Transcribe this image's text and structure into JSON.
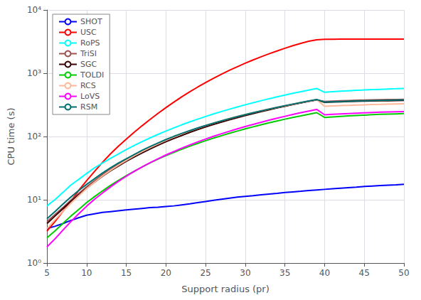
{
  "chart_data": {
    "type": "line",
    "xlabel": "Support radius (pr)",
    "ylabel": "CPU time (s)",
    "log": "y",
    "grid": true,
    "legend": "upper left",
    "xlim": [
      5,
      50
    ],
    "ylim": [
      1,
      10000
    ],
    "xticks": [
      5,
      10,
      15,
      20,
      25,
      30,
      35,
      40,
      45,
      50
    ],
    "yticks": [
      {
        "value": 1,
        "label": "10⁰"
      },
      {
        "value": 10,
        "label": "10¹"
      },
      {
        "value": 100,
        "label": "10²"
      },
      {
        "value": 1000,
        "label": "10³"
      },
      {
        "value": 10000,
        "label": "10⁴"
      }
    ],
    "x": [
      5,
      6,
      7,
      8,
      9,
      10,
      11,
      12,
      13,
      14,
      15,
      16,
      17,
      18,
      19,
      20,
      21,
      22,
      23,
      24,
      25,
      26,
      27,
      28,
      29,
      30,
      31,
      32,
      33,
      34,
      35,
      36,
      37,
      38,
      39,
      40,
      41,
      42,
      43,
      44,
      45,
      46,
      47,
      48,
      49,
      50
    ],
    "series": [
      {
        "name": "SHOT",
        "color": "#0000ff",
        "values": [
          3.5,
          3.8,
          4.2,
          4.7,
          5.2,
          5.7,
          6.0,
          6.3,
          6.5,
          6.7,
          6.9,
          7.1,
          7.3,
          7.5,
          7.6,
          7.8,
          8.0,
          8.3,
          8.6,
          9.0,
          9.4,
          9.8,
          10.2,
          10.6,
          11.0,
          11.3,
          11.6,
          12.0,
          12.3,
          12.6,
          13.0,
          13.3,
          13.6,
          14.0,
          14.3,
          14.6,
          14.9,
          15.2,
          15.5,
          15.8,
          16.2,
          16.5,
          16.8,
          17.0,
          17.2,
          17.5
        ]
      },
      {
        "name": "USC",
        "color": "#ff0000",
        "values": [
          3.2,
          4.5,
          6.5,
          9.5,
          14.0,
          20.0,
          28.0,
          39.0,
          53.0,
          70.0,
          91.0,
          117.0,
          148.0,
          186.0,
          232.0,
          286.0,
          350.0,
          424.0,
          508.0,
          604.0,
          712.0,
          832.0,
          965.0,
          1110.0,
          1268.0,
          1440.0,
          1624.0,
          1820.0,
          2028.0,
          2248.0,
          2480.0,
          2720.0,
          2960.0,
          3200.0,
          3380.0,
          3440.0,
          3450.0,
          3460.0,
          3460.0,
          3460.0,
          3460.0,
          3460.0,
          3460.0,
          3460.0,
          3460.0,
          3460.0
        ]
      },
      {
        "name": "RoPS",
        "color": "#00ffff",
        "values": [
          8.0,
          10.0,
          13.0,
          17.0,
          21.0,
          26.0,
          32.0,
          38.0,
          45.0,
          53.0,
          62.0,
          72.0,
          83.0,
          95.0,
          108.0,
          122.0,
          137.0,
          153.0,
          170.0,
          188.0,
          207.0,
          227.0,
          248.0,
          270.0,
          293.0,
          317.0,
          342.0,
          368.0,
          395.0,
          423.0,
          452.0,
          481.0,
          511.0,
          542.0,
          574.0,
          500.0,
          510.0,
          520.0,
          528.0,
          536.0,
          543.0,
          550.0,
          556.0,
          562.0,
          568.0,
          575.0
        ]
      },
      {
        "name": "TriSI",
        "color": "#a05050",
        "values": [
          4.5,
          5.8,
          7.5,
          9.8,
          12.5,
          16.0,
          20.0,
          25.0,
          30.5,
          36.5,
          43.0,
          50.5,
          58.5,
          67.0,
          76.5,
          86.5,
          97.0,
          108.5,
          120.5,
          133.0,
          146.0,
          159.5,
          173.5,
          188.0,
          203.0,
          218.5,
          234.5,
          251.0,
          268.0,
          285.5,
          303.5,
          322.0,
          341.0,
          360.0,
          379.0,
          358.0,
          362.0,
          366.0,
          370.0,
          373.0,
          376.0,
          379.0,
          381.0,
          383.0,
          385.0,
          387.0
        ]
      },
      {
        "name": "SGC",
        "color": "#3d0000",
        "values": [
          4.2,
          5.5,
          7.2,
          9.4,
          12.0,
          15.2,
          19.0,
          23.5,
          28.5,
          34.0,
          40.5,
          47.5,
          55.0,
          63.5,
          72.5,
          82.5,
          93.0,
          104.0,
          116.0,
          128.5,
          141.5,
          155.0,
          169.0,
          183.5,
          198.5,
          214.0,
          230.0,
          247.0,
          264.5,
          282.5,
          301.0,
          320.0,
          339.5,
          359.5,
          380.0,
          346.0,
          350.0,
          354.0,
          357.0,
          360.0,
          362.0,
          364.0,
          366.0,
          368.0,
          370.0,
          372.0
        ]
      },
      {
        "name": "TOLDI",
        "color": "#00cc00",
        "values": [
          2.5,
          3.2,
          4.2,
          5.5,
          7.0,
          9.0,
          11.2,
          13.8,
          16.8,
          20.2,
          24.0,
          28.2,
          33.0,
          38.2,
          43.8,
          49.8,
          56.2,
          63.0,
          70.2,
          77.8,
          85.8,
          94.2,
          103.0,
          112.2,
          121.8,
          131.8,
          142.2,
          153.0,
          164.2,
          175.8,
          187.8,
          200.0,
          212.0,
          225.0,
          238.0,
          200.0,
          204.0,
          208.0,
          212.0,
          215.0,
          218.0,
          221.0,
          224.0,
          226.0,
          228.0,
          230.0
        ]
      },
      {
        "name": "RCS",
        "color": "#ffb899",
        "values": [
          3.5,
          4.8,
          6.5,
          8.8,
          11.5,
          15.0,
          19.0,
          23.8,
          29.2,
          35.2,
          42.0,
          49.5,
          57.8,
          66.8,
          76.5,
          87.0,
          98.2,
          110.0,
          122.5,
          135.5,
          149.0,
          162.8,
          177.2,
          192.0,
          207.2,
          222.8,
          238.8,
          255.2,
          272.0,
          289.2,
          306.8,
          324.8,
          343.2,
          362.0,
          381.2,
          300.0,
          304.0,
          308.0,
          311.0,
          314.0,
          317.0,
          320.0,
          322.0,
          325.0,
          327.0,
          329.0
        ]
      },
      {
        "name": "LoVS",
        "color": "#ff00ff",
        "values": [
          1.8,
          2.4,
          3.3,
          4.5,
          6.0,
          7.9,
          10.2,
          12.8,
          15.9,
          19.5,
          23.5,
          28.0,
          33.0,
          38.5,
          44.5,
          51.0,
          58.0,
          65.5,
          73.5,
          82.0,
          91.0,
          100.5,
          110.5,
          121.0,
          132.0,
          143.5,
          155.5,
          168.0,
          181.0,
          194.5,
          208.5,
          223.0,
          237.5,
          252.5,
          268.0,
          220.0,
          224.0,
          228.0,
          231.0,
          234.0,
          237.0,
          240.0,
          242.0,
          244.0,
          246.0,
          248.0
        ]
      },
      {
        "name": "RSM",
        "color": "#007070",
        "values": [
          5.0,
          6.5,
          8.5,
          11.0,
          14.0,
          17.5,
          21.5,
          26.5,
          32.0,
          38.0,
          44.5,
          52.0,
          60.5,
          69.5,
          79.0,
          89.5,
          100.5,
          112.0,
          124.0,
          136.5,
          149.5,
          163.0,
          177.0,
          191.5,
          206.5,
          222.0,
          238.0,
          254.5,
          271.5,
          289.0,
          307.0,
          325.5,
          344.5,
          364.0,
          384.0,
          350.0,
          354.0,
          358.0,
          361.0,
          364.0,
          367.0,
          370.0,
          372.0,
          374.0,
          376.0,
          378.0
        ]
      }
    ]
  }
}
